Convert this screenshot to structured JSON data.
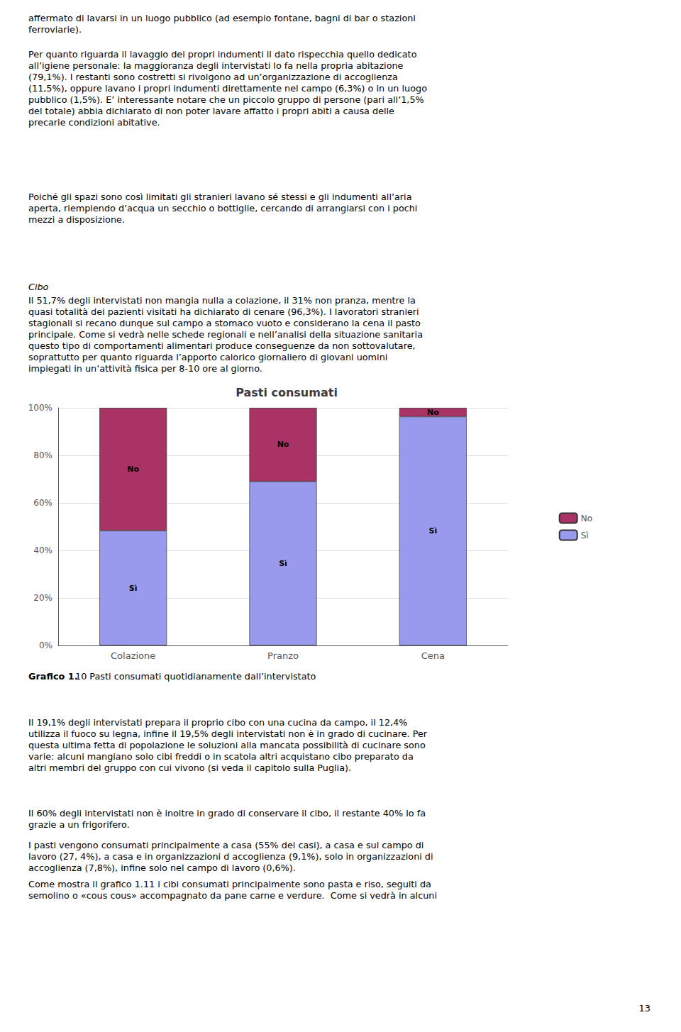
{
  "chart_data": {
    "type": "bar",
    "title": "Pasti consumati",
    "categories": [
      "Colazione",
      "Pranzo",
      "Cena"
    ],
    "series": [
      {
        "name": "Sì",
        "color": "#9999EE",
        "values": [
          48.3,
          69.0,
          96.3
        ]
      },
      {
        "name": "No",
        "color": "#AA3366",
        "values": [
          51.7,
          31.0,
          3.7
        ]
      }
    ],
    "stacked": true,
    "ylim": [
      0,
      100
    ],
    "yticks": [
      {
        "value": 0,
        "label": "0%"
      },
      {
        "value": 20,
        "label": "20%"
      },
      {
        "value": 40,
        "label": "40%"
      },
      {
        "value": 60,
        "label": "60%"
      },
      {
        "value": 80,
        "label": "80%"
      },
      {
        "value": 100,
        "label": "100%"
      }
    ],
    "grid": true,
    "legend": "right",
    "annotations": [
      "affermato di lavarsi in un luogo pubblico (ad esempio fontane, bagni di bar o stazioni\nferroviarie).",
      "Per quanto riguarda il lavaggio dei propri indumenti il dato rispecchia quello dedicato\nall’igiene personale: la maggioranza degli intervistati lo fa nella propria abitazione\n(79,1%). I restanti sono costretti si rivolgono ad un’organizzazione di accoglienza\n(11,5%), oppure lavano i propri indumenti direttamente nel campo (6,3%) o in un luogo\npubblico (1,5%). E’ interessante notare che un piccolo gruppo di persone (pari all’1,5%\ndel totale) abbia dichiarato di non poter lavare affatto i propri abiti a causa delle\nprecarie condizioni abitative.",
      "Poiché gli spazi sono così limitati gli stranieri lavano sé stessi e gli indumenti all’aria\naperta, riempiendo d’acqua un secchio o bottiglie, cercando di arrangiarsi con i pochi\nmezzi a disposizione.",
      "Cibo",
      "Il 51,7% degli intervistati non mangia nulla a colazione, il 31% non pranza, mentre la\nquasi totalità dei pazienti visitati ha dichiarato di cenare (96,3%). I lavoratori stranieri\nstagionali si recano dunque sul campo a stomaco vuoto e considerano la cena il pasto\nprincipale. Come si vedrà nelle schede regionali e nell’analisi della situazione sanitaria\nquesto tipo di comportamenti alimentari produce conseguenze da non sottovalutare,\nsoprattutto per quanto riguarda l’apporto calorico giornaliero di giovani uomini\nimpiegati in un’attività fisica per 8-10 ore al giorno.",
      "Grafico 1.",
      "10 Pasti consumati quotidianamente dall’intervistato",
      "Il 19,1% degli intervistati prepara il proprio cibo con una cucina da campo, il 12,4%\nutilizza il fuoco su legna, infine il 19,5% degli intervistati non è in grado di cucinare. Per\nquesta ultima fetta di popolazione le soluzioni alla mancata possibilità di cucinare sono\nvarie: alcuni mangiano solo cibi freddi o in scatola altri acquistano cibo preparato da\naltri membri del gruppo con cui vivono (si veda il capitolo sulla Puglia).",
      "Il 60% degli intervistati non è inoltre in grado di conservare il cibo, il restante 40% lo fa\ngrazie a un frigorifero.",
      "I pasti vengono consumati principalmente a casa (55% dei casi), a casa e sul campo di\nlavoro (27, 4%), a casa e in organizzazioni d accoglienza (9,1%), solo in organizzazioni di\naccoglienza (7,8%), infine solo nel campo di lavoro (0,6%).",
      "Come mostra il grafico 1.11 i cibi consumati principalmente sono pasta e riso, seguiti da\nsemolino o «cous cous» accompagnato da pane carne e verdure.  Come si vedrà in alcuni",
      "13"
    ]
  }
}
